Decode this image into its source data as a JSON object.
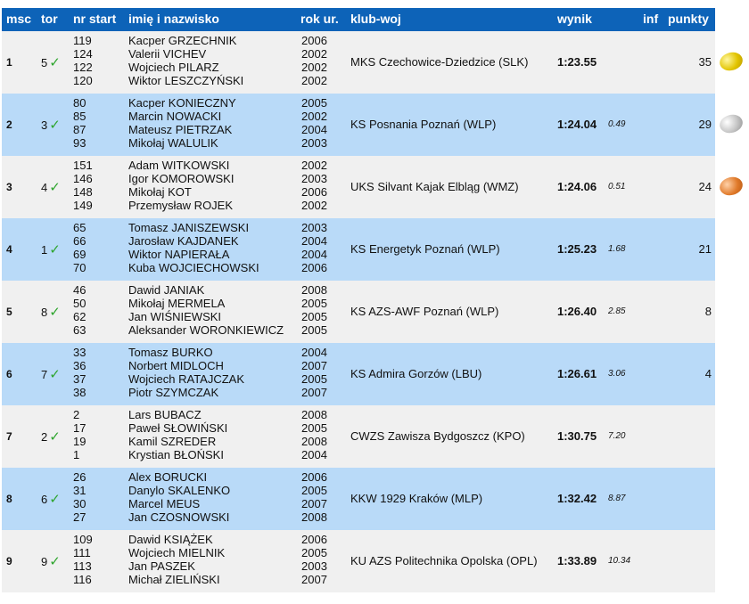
{
  "header": {
    "msc": "msc",
    "tor": "tor",
    "nr_start": "nr start",
    "name": "imię i nazwisko",
    "year": "rok ur.",
    "club": "klub-woj",
    "result": "wynik",
    "inf": "inf",
    "points": "punkty"
  },
  "check_glyph": "✓",
  "medals": [
    "gold",
    "silver",
    "bronze"
  ],
  "rows": [
    {
      "msc": "1",
      "tor": "5",
      "club": "MKS Czechowice-Dziedzice (SLK)",
      "result": "1:23.55",
      "diff": "",
      "points": "35",
      "crew": [
        {
          "nr": "119",
          "name": "Kacper GRZECHNIK",
          "year": "2006"
        },
        {
          "nr": "124",
          "name": "Valerii VICHEV",
          "year": "2002"
        },
        {
          "nr": "122",
          "name": "Wojciech PILARZ",
          "year": "2002"
        },
        {
          "nr": "120",
          "name": "Wiktor LESZCZYŃSKI",
          "year": "2002"
        }
      ]
    },
    {
      "msc": "2",
      "tor": "3",
      "club": "KS Posnania Poznań (WLP)",
      "result": "1:24.04",
      "diff": "0.49",
      "points": "29",
      "crew": [
        {
          "nr": "80",
          "name": "Kacper KONIECZNY",
          "year": "2005"
        },
        {
          "nr": "85",
          "name": "Marcin NOWACKI",
          "year": "2002"
        },
        {
          "nr": "87",
          "name": "Mateusz PIETRZAK",
          "year": "2004"
        },
        {
          "nr": "93",
          "name": "Mikołaj WALULIK",
          "year": "2003"
        }
      ]
    },
    {
      "msc": "3",
      "tor": "4",
      "club": "UKS Silvant Kajak Elbląg (WMZ)",
      "result": "1:24.06",
      "diff": "0.51",
      "points": "24",
      "crew": [
        {
          "nr": "151",
          "name": "Adam WITKOWSKI",
          "year": "2002"
        },
        {
          "nr": "146",
          "name": "Igor KOMOROWSKI",
          "year": "2003"
        },
        {
          "nr": "148",
          "name": "Mikołaj KOT",
          "year": "2006"
        },
        {
          "nr": "149",
          "name": "Przemysław ROJEK",
          "year": "2002"
        }
      ]
    },
    {
      "msc": "4",
      "tor": "1",
      "club": "KS Energetyk Poznań (WLP)",
      "result": "1:25.23",
      "diff": "1.68",
      "points": "21",
      "crew": [
        {
          "nr": "65",
          "name": "Tomasz JANISZEWSKI",
          "year": "2003"
        },
        {
          "nr": "66",
          "name": "Jarosław KAJDANEK",
          "year": "2004"
        },
        {
          "nr": "69",
          "name": "Wiktor NAPIERAŁA",
          "year": "2004"
        },
        {
          "nr": "70",
          "name": "Kuba WOJCIECHOWSKI",
          "year": "2006"
        }
      ]
    },
    {
      "msc": "5",
      "tor": "8",
      "club": "KS AZS-AWF Poznań (WLP)",
      "result": "1:26.40",
      "diff": "2.85",
      "points": "8",
      "crew": [
        {
          "nr": "46",
          "name": "Dawid JANIAK",
          "year": "2008"
        },
        {
          "nr": "50",
          "name": "Mikołaj MERMELA",
          "year": "2005"
        },
        {
          "nr": "62",
          "name": "Jan WIŚNIEWSKI",
          "year": "2005"
        },
        {
          "nr": "63",
          "name": "Aleksander WORONKIEWICZ",
          "year": "2005"
        }
      ]
    },
    {
      "msc": "6",
      "tor": "7",
      "club": "KS Admira Gorzów (LBU)",
      "result": "1:26.61",
      "diff": "3.06",
      "points": "4",
      "crew": [
        {
          "nr": "33",
          "name": "Tomasz BURKO",
          "year": "2004"
        },
        {
          "nr": "36",
          "name": "Norbert MIDLOCH",
          "year": "2007"
        },
        {
          "nr": "37",
          "name": "Wojciech RATAJCZAK",
          "year": "2005"
        },
        {
          "nr": "38",
          "name": "Piotr SZYMCZAK",
          "year": "2007"
        }
      ]
    },
    {
      "msc": "7",
      "tor": "2",
      "club": "CWZS Zawisza Bydgoszcz (KPO)",
      "result": "1:30.75",
      "diff": "7.20",
      "points": "",
      "crew": [
        {
          "nr": "2",
          "name": "Lars BUBACZ",
          "year": "2008"
        },
        {
          "nr": "17",
          "name": "Paweł SŁOWIŃSKI",
          "year": "2005"
        },
        {
          "nr": "19",
          "name": "Kamil SZREDER",
          "year": "2008"
        },
        {
          "nr": "1",
          "name": "Krystian BŁOŃSKI",
          "year": "2004"
        }
      ]
    },
    {
      "msc": "8",
      "tor": "6",
      "club": "KKW 1929 Kraków (MLP)",
      "result": "1:32.42",
      "diff": "8.87",
      "points": "",
      "crew": [
        {
          "nr": "26",
          "name": "Alex BORUCKI",
          "year": "2006"
        },
        {
          "nr": "31",
          "name": "Danylo SKALENKO",
          "year": "2005"
        },
        {
          "nr": "30",
          "name": "Marcel MEUS",
          "year": "2007"
        },
        {
          "nr": "27",
          "name": "Jan CZOSNOWSKI",
          "year": "2008"
        }
      ]
    },
    {
      "msc": "9",
      "tor": "9",
      "club": "KU AZS Politechnika Opolska (OPL)",
      "result": "1:33.89",
      "diff": "10.34",
      "points": "",
      "crew": [
        {
          "nr": "109",
          "name": "Dawid KSIĄŻEK",
          "year": "2006"
        },
        {
          "nr": "111",
          "name": "Wojciech MIELNIK",
          "year": "2005"
        },
        {
          "nr": "113",
          "name": "Jan PASZEK",
          "year": "2003"
        },
        {
          "nr": "116",
          "name": "Michał ZIELIŃSKI",
          "year": "2007"
        }
      ]
    }
  ]
}
